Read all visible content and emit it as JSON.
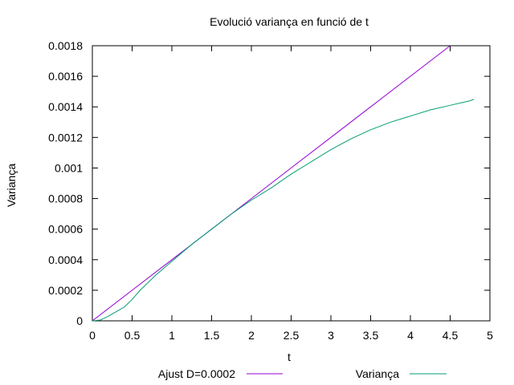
{
  "chart_data": {
    "type": "line",
    "title": "Evolució variança en funció de t",
    "xlabel": "t",
    "ylabel": "Variança",
    "xlim": [
      0,
      5
    ],
    "ylim": [
      0,
      0.0018
    ],
    "x_ticks": [
      "0",
      "0.5",
      "1",
      "1.5",
      "2",
      "2.5",
      "3",
      "3.5",
      "4",
      "4.5",
      "5"
    ],
    "y_ticks": [
      "0",
      "0.0002",
      "0.0004",
      "0.0006",
      "0.0008",
      "0.001",
      "0.0012",
      "0.0014",
      "0.0016",
      "0.0018"
    ],
    "grid": false,
    "legend_position": "bottom",
    "series": [
      {
        "name": "Ajust D=0.0002",
        "color": "#9400d3",
        "x": [
          0,
          0.5,
          1,
          1.5,
          2,
          2.5,
          3,
          3.5,
          4,
          4.5
        ],
        "y": [
          0,
          0.0002,
          0.0004,
          0.0006,
          0.0008,
          0.001,
          0.0012,
          0.0014,
          0.0016,
          0.0018
        ]
      },
      {
        "name": "Variança",
        "color": "#009e73",
        "x": [
          0,
          0.1,
          0.2,
          0.3,
          0.4,
          0.5,
          0.6,
          0.8,
          1,
          1.25,
          1.5,
          1.75,
          2,
          2.25,
          2.5,
          2.75,
          3,
          3.25,
          3.5,
          3.75,
          4,
          4.25,
          4.5,
          4.75,
          4.8
        ],
        "y": [
          0,
          5e-06,
          3e-05,
          6e-05,
          9e-05,
          0.00014,
          0.0002,
          0.0003,
          0.00039,
          0.0005,
          0.0006,
          0.0007,
          0.00079,
          0.00087,
          0.00096,
          0.00104,
          0.00112,
          0.00119,
          0.00125,
          0.0013,
          0.00134,
          0.00138,
          0.00141,
          0.00144,
          0.00145
        ]
      }
    ]
  }
}
